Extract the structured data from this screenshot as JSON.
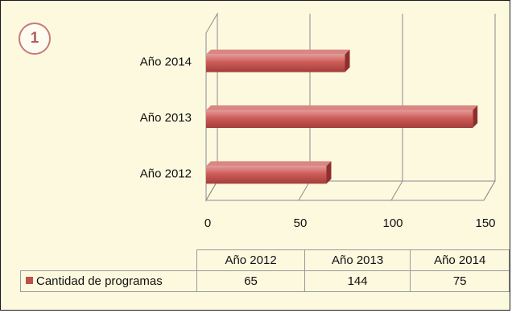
{
  "badge": "1",
  "chart_data": {
    "type": "bar",
    "orientation": "horizontal",
    "categories": [
      "Año 2012",
      "Año 2013",
      "Año 2014"
    ],
    "series": [
      {
        "name": "Cantidad de programas",
        "values": [
          65,
          144,
          75
        ],
        "color": "#c0504d"
      }
    ],
    "xticks": [
      "0",
      "50",
      "100",
      "150"
    ],
    "xlim": [
      0,
      150
    ],
    "grid": true,
    "legend": "data-table"
  }
}
